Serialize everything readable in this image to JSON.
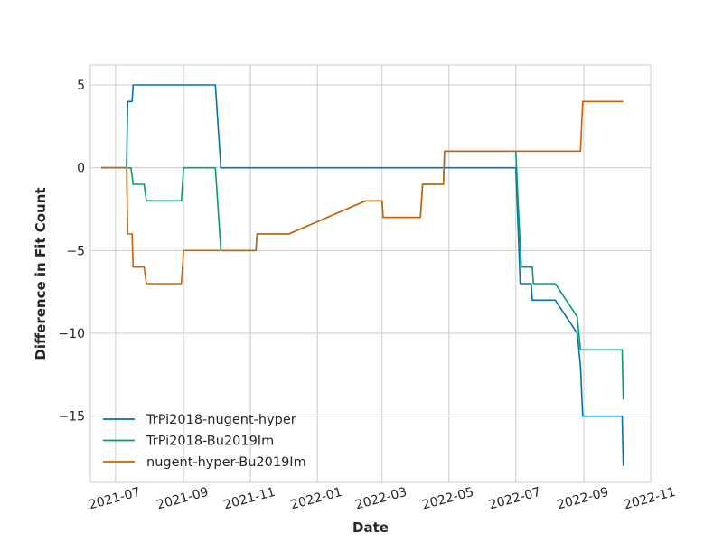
{
  "chart_data": {
    "type": "line",
    "xlabel": "Date",
    "ylabel": "Difference in Fit Count",
    "xlim": [
      "2021-06-08",
      "2022-11-01"
    ],
    "ylim": [
      -19,
      6.2
    ],
    "grid": true,
    "legend": "lower-left",
    "x_ticks": [
      {
        "date": "2021-07-01",
        "label": "2021-07"
      },
      {
        "date": "2021-09-01",
        "label": "2021-09"
      },
      {
        "date": "2021-11-01",
        "label": "2021-11"
      },
      {
        "date": "2022-01-01",
        "label": "2022-01"
      },
      {
        "date": "2022-03-01",
        "label": "2022-03"
      },
      {
        "date": "2022-05-01",
        "label": "2022-05"
      },
      {
        "date": "2022-07-01",
        "label": "2022-07"
      },
      {
        "date": "2022-09-01",
        "label": "2022-09"
      },
      {
        "date": "2022-11-01",
        "label": "2022-11"
      }
    ],
    "y_ticks": [
      {
        "value": 5,
        "label": "5"
      },
      {
        "value": 0,
        "label": "0"
      },
      {
        "value": -5,
        "label": "−5"
      },
      {
        "value": -10,
        "label": "−10"
      },
      {
        "value": -15,
        "label": "−15"
      }
    ],
    "series": [
      {
        "name": "TrPi2018-nugent-hyper",
        "color": "#0173b2",
        "points": [
          [
            "2021-06-18",
            0
          ],
          [
            "2021-07-11",
            0
          ],
          [
            "2021-07-12",
            4
          ],
          [
            "2021-07-16",
            4
          ],
          [
            "2021-07-17",
            5
          ],
          [
            "2021-09-30",
            5
          ],
          [
            "2021-10-05",
            0
          ],
          [
            "2022-07-01",
            0
          ],
          [
            "2022-07-05",
            -7
          ],
          [
            "2022-07-15",
            -7
          ],
          [
            "2022-07-16",
            -8
          ],
          [
            "2022-08-06",
            -8
          ],
          [
            "2022-08-26",
            -10
          ],
          [
            "2022-08-29",
            -12
          ],
          [
            "2022-08-31",
            -15
          ],
          [
            "2022-10-06",
            -15
          ],
          [
            "2022-10-07",
            -18
          ]
        ]
      },
      {
        "name": "TrPi2018-Bu2019Im",
        "color": "#029e73",
        "points": [
          [
            "2021-06-18",
            0
          ],
          [
            "2021-07-15",
            0
          ],
          [
            "2021-07-17",
            -1
          ],
          [
            "2021-07-27",
            -1
          ],
          [
            "2021-07-29",
            -2
          ],
          [
            "2021-08-30",
            -2
          ],
          [
            "2021-09-01",
            0
          ],
          [
            "2021-09-30",
            0
          ],
          [
            "2021-10-05",
            -5
          ],
          [
            "2021-11-06",
            -5
          ],
          [
            "2021-11-07",
            -4
          ],
          [
            "2021-12-06",
            -4
          ],
          [
            "2022-02-14",
            -2
          ],
          [
            "2022-03-01",
            -2
          ],
          [
            "2022-03-02",
            -3
          ],
          [
            "2022-04-05",
            -3
          ],
          [
            "2022-04-06",
            -2
          ],
          [
            "2022-04-07",
            -1
          ],
          [
            "2022-04-26",
            -1
          ],
          [
            "2022-04-27",
            1
          ],
          [
            "2022-07-01",
            1
          ],
          [
            "2022-07-03",
            -2
          ],
          [
            "2022-07-06",
            -6
          ],
          [
            "2022-07-16",
            -6
          ],
          [
            "2022-07-17",
            -7
          ],
          [
            "2022-08-06",
            -7
          ],
          [
            "2022-08-26",
            -9
          ],
          [
            "2022-08-29",
            -11
          ],
          [
            "2022-10-06",
            -11
          ],
          [
            "2022-10-07",
            -14
          ]
        ]
      },
      {
        "name": "nugent-hyper-Bu2019Im",
        "color": "#d55e00",
        "points": [
          [
            "2021-06-18",
            0
          ],
          [
            "2021-07-11",
            0
          ],
          [
            "2021-07-12",
            -4
          ],
          [
            "2021-07-16",
            -4
          ],
          [
            "2021-07-17",
            -6
          ],
          [
            "2021-07-27",
            -6
          ],
          [
            "2021-07-29",
            -7
          ],
          [
            "2021-08-30",
            -7
          ],
          [
            "2021-09-01",
            -5
          ],
          [
            "2021-11-06",
            -5
          ],
          [
            "2021-11-07",
            -4
          ],
          [
            "2021-12-06",
            -4
          ],
          [
            "2022-02-14",
            -2
          ],
          [
            "2022-03-01",
            -2
          ],
          [
            "2022-03-02",
            -3
          ],
          [
            "2022-04-05",
            -3
          ],
          [
            "2022-04-06",
            -2
          ],
          [
            "2022-04-07",
            -1
          ],
          [
            "2022-04-26",
            -1
          ],
          [
            "2022-04-27",
            1
          ],
          [
            "2022-08-29",
            1
          ],
          [
            "2022-08-31",
            4
          ],
          [
            "2022-10-07",
            4
          ]
        ]
      }
    ]
  }
}
